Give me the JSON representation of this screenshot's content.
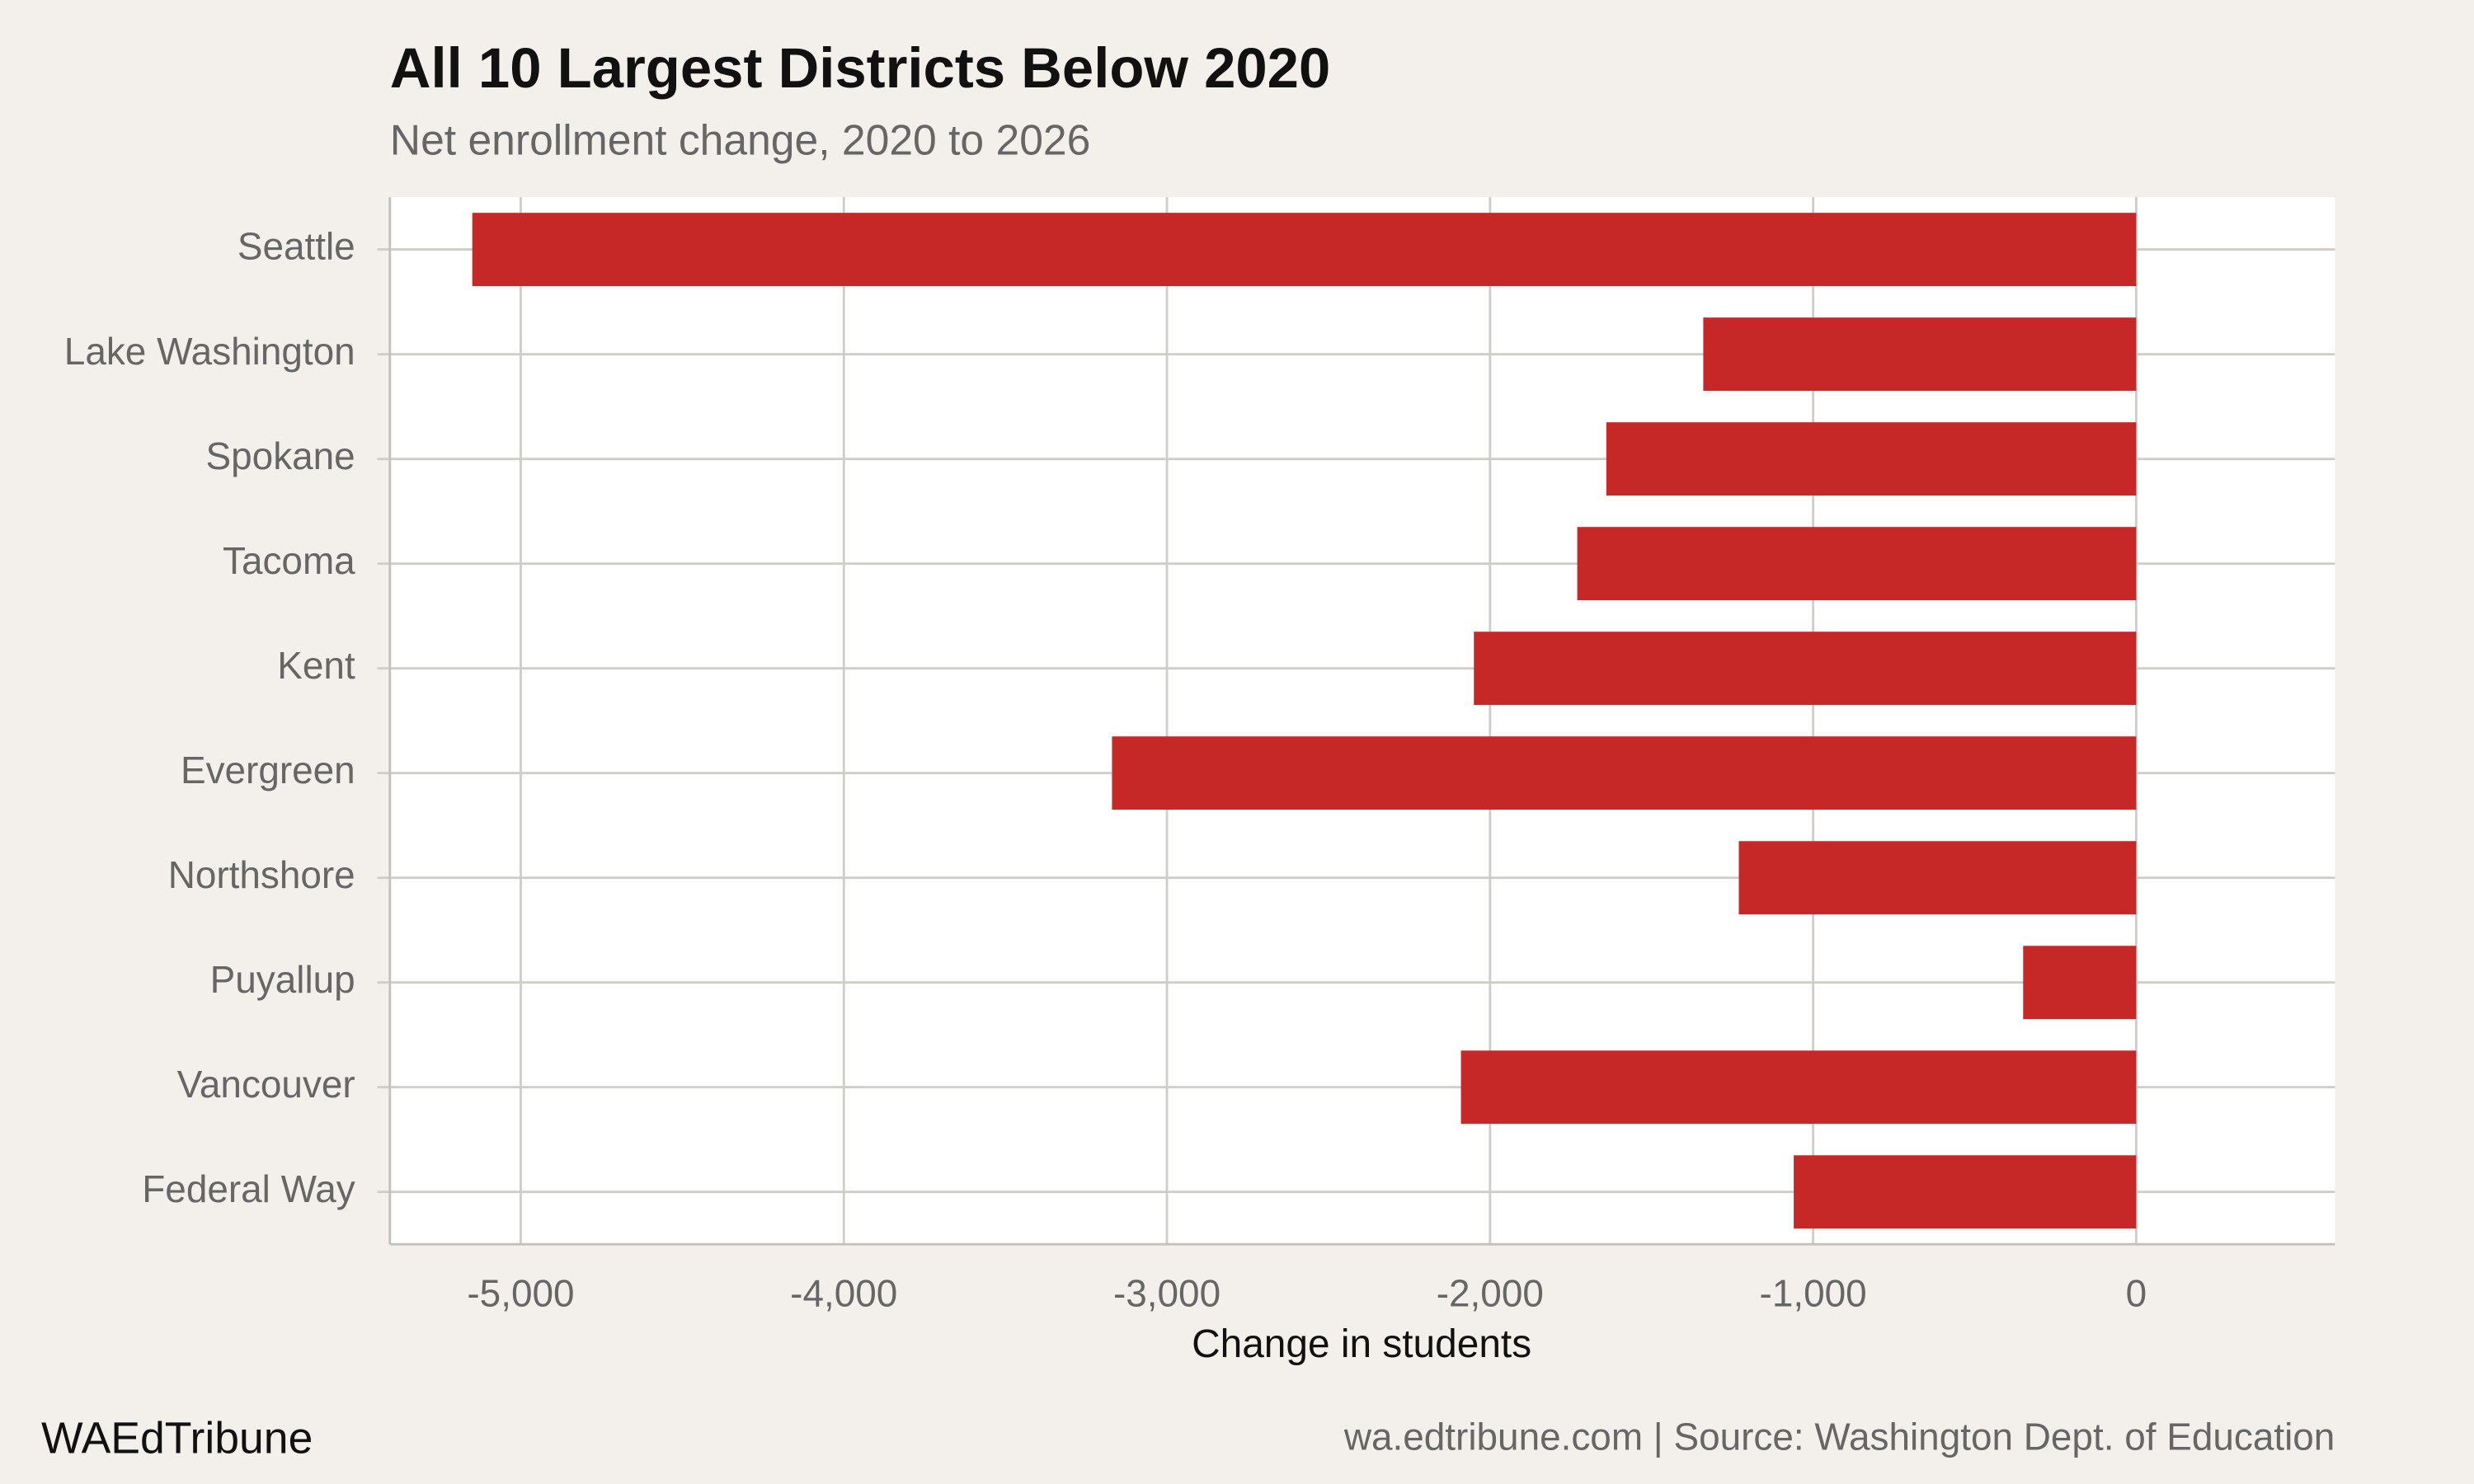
{
  "chart_data": {
    "type": "bar",
    "orientation": "horizontal",
    "title": "All 10 Largest Districts Below 2020",
    "subtitle": "Net enrollment change, 2020 to 2026",
    "x_label": "Change in students",
    "brand": "WAEdTribune",
    "source": "wa.edtribune.com | Source: Washington Dept. of Education",
    "categories": [
      "Seattle",
      "Lake Washington",
      "Spokane",
      "Tacoma",
      "Kent",
      "Evergreen",
      "Northshore",
      "Puyallup",
      "Vancouver",
      "Federal Way"
    ],
    "values": [
      -5150,
      -1340,
      -1640,
      -1730,
      -2050,
      -3170,
      -1230,
      -350,
      -2090,
      -1060
    ],
    "color": "#c62828",
    "xlim": [
      -5405,
      615
    ],
    "xticks": [
      {
        "value": -5000,
        "label": "-5,000"
      },
      {
        "value": -4000,
        "label": "-4,000"
      },
      {
        "value": -3000,
        "label": "-3,000"
      },
      {
        "value": -2000,
        "label": "-2,000"
      },
      {
        "value": -1000,
        "label": "-1,000"
      },
      0
    ],
    "grid": true
  }
}
